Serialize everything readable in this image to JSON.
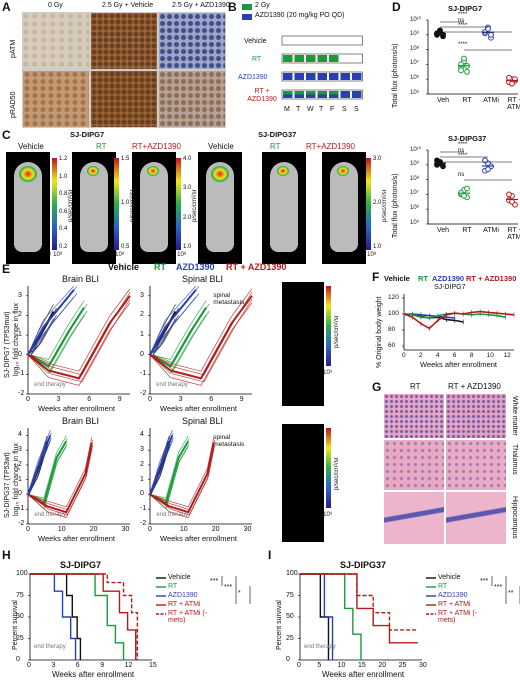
{
  "panels": {
    "A": "A",
    "B": "B",
    "C": "C",
    "D": "D",
    "E": "E",
    "F": "F",
    "G": "G",
    "H": "H",
    "I": "I"
  },
  "A": {
    "cols": [
      "0 Gy",
      "2.5 Gy + Vehicle",
      "2.5 Gy + AZD1390"
    ],
    "rows": [
      "pATM",
      "pRAD50"
    ]
  },
  "B": {
    "legend": [
      "2 Gy",
      "AZD1390 (20 mg/kg PO QD)"
    ],
    "rows": [
      "Vehicle",
      "RT",
      "AZD1390",
      "RT + AZD1390"
    ],
    "days": [
      "M",
      "T",
      "W",
      "T",
      "F",
      "S",
      "S"
    ],
    "colors": {
      "rt": "#1a9a3a",
      "azd": "#2a3fb0"
    }
  },
  "C": {
    "groups": [
      "SJ-DIPG7",
      "SJ-DIPG37"
    ],
    "labels": [
      "Vehicle",
      "RT",
      "RT+AZD1390",
      "Vehicle",
      "RT",
      "RT+AZD1390"
    ],
    "unit": "p/sec/cm²/sr",
    "scales": [
      [
        "1.2",
        "1.0",
        "0.8",
        "0.6",
        "0.4",
        "0.2"
      ],
      [
        "1.5",
        "1.0",
        "0.5"
      ],
      [
        "4.0",
        "3.0",
        "2.0",
        "1.0"
      ],
      [
        "3.0",
        "2.0",
        "1.0"
      ]
    ],
    "mult": [
      "× 10⁸",
      "× 10⁸",
      "× 10⁸",
      "× 10⁸"
    ]
  },
  "D": {
    "titles": [
      "SJ-DIPG7",
      "SJ-DIPG37"
    ],
    "ylabel": "Total flux (photons/s)",
    "cats": [
      "Veh",
      "RT",
      "ATMi",
      "RT + ATMi"
    ],
    "yticks": [
      "10¹⁰",
      "10⁹",
      "10⁸",
      "10⁷",
      "10⁶",
      "10⁵"
    ],
    "stars": [
      "****",
      "ns",
      "****",
      "****",
      "****",
      "ns",
      "****",
      "ns"
    ]
  },
  "E": {
    "legend": [
      "Vehicle",
      "RT",
      "AZD1390",
      "RT + AZD1390"
    ],
    "titles": [
      "Brain BLI",
      "Spinal BLI",
      "Brain BLI",
      "Spinal BLI"
    ],
    "ylabel1": "SJ-DIPG7 (TP53mut)",
    "ylabel2": "SJ-DIPG37 (TP53wt)",
    "ylabel": "log₁₀ fold change in flux",
    "xlabel": "Weeks after enrollment",
    "endtherapy": "end therapy",
    "spinal": "spinal metastasis",
    "yticks1": [
      "3",
      "2",
      "1",
      "0",
      "-1",
      "-2"
    ],
    "xticks1": [
      "0",
      "3",
      "6",
      "9"
    ],
    "yticks2": [
      "4",
      "3",
      "2",
      "1",
      "0",
      "-1",
      "-2"
    ],
    "xticks2": [
      "0",
      "10",
      "20",
      "30"
    ],
    "scale": "p/sec/cm²/sr",
    "mult": "× 10⁹"
  },
  "F": {
    "legend": [
      "Vehicle",
      "RT",
      "AZD1390",
      "RT + AZD1390"
    ],
    "title": "SJ-DIPG7",
    "ylabel": "% Original body weight",
    "xlabel": "Weeks after enrollment",
    "yticks": [
      "120",
      "100",
      "80",
      "60"
    ],
    "xticks": [
      "0",
      "2",
      "4",
      "6",
      "8",
      "10",
      "12"
    ]
  },
  "G": {
    "cols": [
      "RT",
      "RT + AZD1390"
    ],
    "rows": [
      "White matter",
      "Thalamus",
      "Hippocampus"
    ]
  },
  "H": {
    "title": "SJ-DIPG7",
    "ylabel": "Percent survival",
    "xlabel": "Weeks after enrollment",
    "legend": [
      "Vehicle",
      "RT",
      "AZD1390",
      "RT + ATMi",
      "RT + ATMi (-mets)"
    ],
    "yticks": [
      "100",
      "75",
      "50",
      "25",
      "0"
    ],
    "xticks": [
      "0",
      "3",
      "6",
      "9",
      "12",
      "15"
    ],
    "endtherapy": "end therapy",
    "stars": [
      "***",
      "***",
      "*"
    ]
  },
  "I": {
    "title": "SJ-DIPG37",
    "ylabel": "Percent survival",
    "xlabel": "Weeks after enrollment",
    "legend": [
      "Vehicle",
      "RT",
      "AZD1390",
      "RT + ATMi",
      "RT + ATMi (-mets)"
    ],
    "yticks": [
      "100",
      "75",
      "50",
      "25",
      "0"
    ],
    "xticks": [
      "0",
      "5",
      "10",
      "15",
      "20",
      "25",
      "30"
    ],
    "endtherapy": "end therapy",
    "stars": [
      "***",
      "***",
      "**"
    ]
  }
}
